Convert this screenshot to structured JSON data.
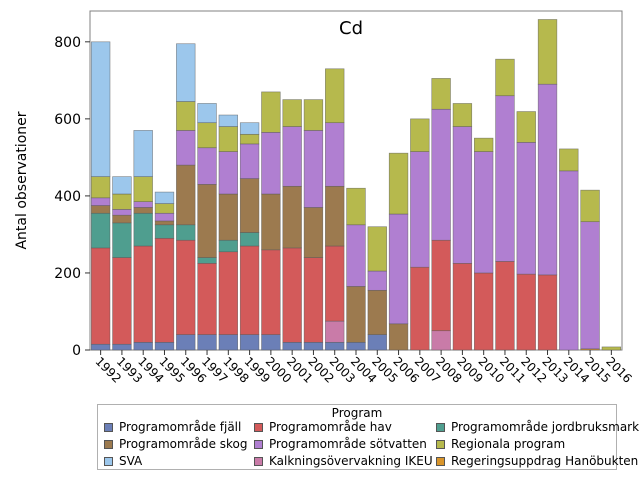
{
  "chart_data": {
    "type": "bar",
    "stacked": true,
    "title": "Cd",
    "xlabel": "",
    "ylabel": "Antal observationer",
    "ylim": [
      0,
      880
    ],
    "yticks": [
      0,
      200,
      400,
      600,
      800
    ],
    "grid": false,
    "legend_title": "Program",
    "legend_placement": "bottom",
    "categories": [
      "1992",
      "1993",
      "1994",
      "1995",
      "1996",
      "1997",
      "1998",
      "1999",
      "2000",
      "2001",
      "2002",
      "2003",
      "2004",
      "2005",
      "2006",
      "2007",
      "2008",
      "2009",
      "2010",
      "2011",
      "2012",
      "2013",
      "2014",
      "2015",
      "2016"
    ],
    "series": [
      {
        "name": "Programområde fjäll",
        "color": "#6b7fb7",
        "values": [
          15,
          15,
          20,
          20,
          40,
          40,
          40,
          40,
          40,
          20,
          20,
          20,
          20,
          40,
          0,
          0,
          0,
          0,
          0,
          0,
          0,
          0,
          0,
          0,
          0
        ]
      },
      {
        "name": "Kalkningsövervakning IKEU",
        "color": "#c97ba8",
        "values": [
          0,
          0,
          0,
          0,
          0,
          0,
          0,
          0,
          0,
          0,
          0,
          55,
          0,
          0,
          0,
          0,
          50,
          0,
          0,
          0,
          0,
          0,
          0,
          0,
          0
        ]
      },
      {
        "name": "Programområde hav",
        "color": "#d35a5a",
        "values": [
          250,
          225,
          250,
          270,
          245,
          185,
          215,
          230,
          220,
          245,
          220,
          195,
          0,
          0,
          0,
          215,
          235,
          225,
          200,
          230,
          197,
          195,
          0,
          0,
          0
        ]
      },
      {
        "name": "Programområde jordbruksmark",
        "color": "#4f9e8f",
        "values": [
          90,
          90,
          85,
          35,
          40,
          15,
          30,
          35,
          0,
          0,
          0,
          0,
          0,
          0,
          0,
          0,
          0,
          0,
          0,
          0,
          0,
          0,
          0,
          0,
          0
        ]
      },
      {
        "name": "Programområde skog",
        "color": "#9c7a4f",
        "values": [
          20,
          20,
          15,
          10,
          155,
          190,
          120,
          140,
          145,
          160,
          130,
          155,
          145,
          115,
          68,
          0,
          0,
          0,
          0,
          0,
          0,
          0,
          0,
          0,
          0
        ]
      },
      {
        "name": "Regeringsuppdrag Hanöbukten",
        "color": "#d9952b",
        "values": [
          0,
          0,
          0,
          0,
          0,
          0,
          0,
          0,
          0,
          0,
          0,
          0,
          0,
          0,
          0,
          0,
          0,
          0,
          0,
          0,
          0,
          0,
          0,
          3,
          0
        ]
      },
      {
        "name": "Programområde sötvatten",
        "color": "#b07fd1",
        "values": [
          20,
          15,
          15,
          20,
          90,
          95,
          110,
          90,
          160,
          155,
          200,
          165,
          160,
          50,
          285,
          300,
          340,
          355,
          315,
          430,
          342,
          495,
          465,
          330,
          0
        ]
      },
      {
        "name": "Regionala program",
        "color": "#b6b94d",
        "values": [
          55,
          40,
          65,
          25,
          75,
          65,
          65,
          25,
          105,
          70,
          80,
          140,
          95,
          115,
          158,
          85,
          80,
          60,
          35,
          95,
          80,
          168,
          57,
          82,
          8
        ]
      },
      {
        "name": "SVA",
        "color": "#9cc7ec",
        "values": [
          350,
          45,
          120,
          30,
          150,
          50,
          30,
          30,
          0,
          0,
          0,
          0,
          0,
          0,
          0,
          0,
          0,
          0,
          0,
          0,
          0,
          0,
          0,
          0,
          0
        ]
      }
    ],
    "legend_order": [
      "Programområde fjäll",
      "Programområde hav",
      "Programområde jordbruksmark",
      "Programområde skog",
      "Programområde sötvatten",
      "Regionala program",
      "SVA",
      "Kalkningsövervakning IKEU",
      "Regeringsuppdrag Hanöbukten"
    ]
  }
}
